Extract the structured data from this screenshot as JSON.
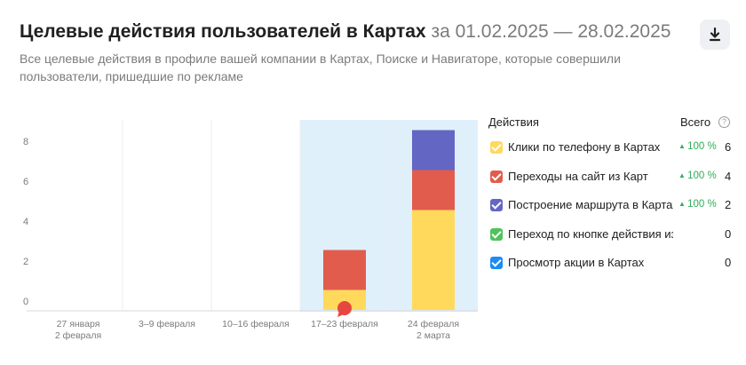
{
  "header": {
    "title": "Целевые действия пользователей в Картах",
    "period": "за 01.02.2025 — 28.02.2025",
    "subtitle": "Все целевые действия в профиле вашей компании в Картах, Поиске и Навигаторе, которые совершили пользователи, пришедшие по рекламе"
  },
  "legend": {
    "title": "Действия",
    "total_label": "Всего",
    "help": "?",
    "items": [
      {
        "label": "Клики по телефону в Картах",
        "change": "100 %",
        "total": "6",
        "color": "#ffd95c"
      },
      {
        "label": "Переходы на сайт из Карт",
        "change": "100 %",
        "total": "4",
        "color": "#e25c4e"
      },
      {
        "label": "Построение маршрута в Картах",
        "change": "100 %",
        "total": "2",
        "color": "#6466c3"
      },
      {
        "label": "Переход по кнопке действия из Карт",
        "change": "",
        "total": "0",
        "color": "#4ec35a"
      },
      {
        "label": "Просмотр акции в Картах",
        "change": "",
        "total": "0",
        "color": "#1a8cf3"
      }
    ]
  },
  "icons": {
    "download": "download-icon",
    "help": "help-circle-icon",
    "comment": "comment-marker-icon",
    "increase": "triangle-up-icon"
  },
  "chart_data": {
    "type": "bar",
    "stacked": true,
    "categories": [
      [
        "27 января",
        "2 февраля"
      ],
      [
        "3–9 февраля"
      ],
      [
        "10–16 февраля"
      ],
      [
        "17–23 февраля"
      ],
      [
        "24 февраля",
        "2 марта"
      ]
    ],
    "series": [
      {
        "name": "Клики по телефону в Картах",
        "color": "#ffd95c",
        "values": [
          0,
          0,
          0,
          1,
          5
        ]
      },
      {
        "name": "Переходы на сайт из Карт",
        "color": "#e25c4e",
        "values": [
          0,
          0,
          0,
          2,
          2
        ]
      },
      {
        "name": "Построение маршрута в Картах",
        "color": "#6466c3",
        "values": [
          0,
          0,
          0,
          0,
          2
        ]
      }
    ],
    "yticks": [
      0,
      2,
      4,
      6,
      8
    ],
    "ylim": [
      0,
      9
    ],
    "highlighted_categories": [
      3,
      4
    ],
    "comment_marker_category": 3,
    "grid": "vertical"
  }
}
